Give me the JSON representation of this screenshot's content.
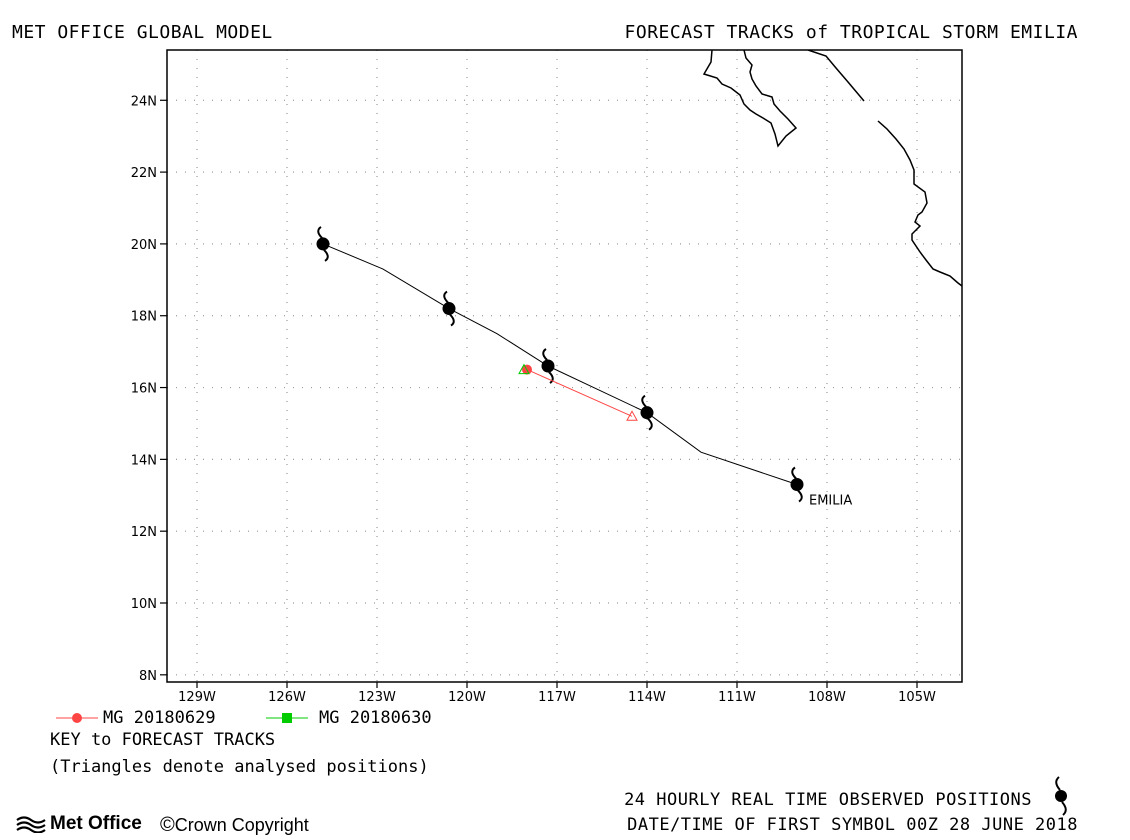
{
  "header": {
    "left_title": "MET OFFICE GLOBAL MODEL",
    "right_title": "FORECAST TRACKS of TROPICAL STORM EMILIA"
  },
  "map": {
    "lon_range": [
      -130,
      -103.5
    ],
    "lat_range": [
      7.8,
      25.4
    ],
    "lat_ticks": [
      {
        "value": 8,
        "label": "8N"
      },
      {
        "value": 10,
        "label": "10N"
      },
      {
        "value": 12,
        "label": "12N"
      },
      {
        "value": 14,
        "label": "14N"
      },
      {
        "value": 16,
        "label": "16N"
      },
      {
        "value": 18,
        "label": "18N"
      },
      {
        "value": 20,
        "label": "20N"
      },
      {
        "value": 22,
        "label": "22N"
      },
      {
        "value": 24,
        "label": "24N"
      }
    ],
    "lon_ticks": [
      {
        "value": -129,
        "label": "129W"
      },
      {
        "value": -126,
        "label": "126W"
      },
      {
        "value": -123,
        "label": "123W"
      },
      {
        "value": -120,
        "label": "120W"
      },
      {
        "value": -117,
        "label": "117W"
      },
      {
        "value": -114,
        "label": "114W"
      },
      {
        "value": -111,
        "label": "111W"
      },
      {
        "value": -108,
        "label": "108W"
      },
      {
        "value": -105,
        "label": "105W"
      }
    ],
    "grid": true,
    "observed_track": {
      "color": "#000000",
      "points": [
        {
          "lon": -109.0,
          "lat": 13.3
        },
        {
          "lon": -112.2,
          "lat": 14.2
        },
        {
          "lon": -114.0,
          "lat": 15.3
        },
        {
          "lon": -117.3,
          "lat": 16.6
        },
        {
          "lon": -119.0,
          "lat": 17.5
        },
        {
          "lon": -120.6,
          "lat": 18.2
        },
        {
          "lon": -122.8,
          "lat": 19.3
        },
        {
          "lon": -124.8,
          "lat": 20.0
        }
      ],
      "symbols": [
        {
          "lon": -109.0,
          "lat": 13.3
        },
        {
          "lon": -114.0,
          "lat": 15.3
        },
        {
          "lon": -117.3,
          "lat": 16.6
        },
        {
          "lon": -120.6,
          "lat": 18.2
        },
        {
          "lon": -124.8,
          "lat": 20.0
        }
      ],
      "storm_label": "EMILIA"
    },
    "forecast_tracks": [
      {
        "name": "MG 20180629",
        "color": "#ff4444",
        "marker": "circle",
        "analysed_position": {
          "lon": -114.5,
          "lat": 15.2
        },
        "points": [
          {
            "lon": -114.5,
            "lat": 15.2
          },
          {
            "lon": -118.0,
            "lat": 16.5
          }
        ]
      },
      {
        "name": "MG 20180630",
        "color": "#00cc00",
        "marker": "square",
        "analysed_position": {
          "lon": -118.1,
          "lat": 16.5
        },
        "points": [
          {
            "lon": -118.1,
            "lat": 16.5
          }
        ]
      }
    ]
  },
  "key": {
    "title": "KEY to FORECAST TRACKS",
    "note": "(Triangles denote analysed positions)"
  },
  "footer": {
    "observed_note": "24 HOURLY REAL TIME OBSERVED POSITIONS",
    "first_symbol": "DATE/TIME OF FIRST SYMBOL 00Z 28 JUNE 2018",
    "logo_text": "Met Office",
    "copyright": "Crown Copyright"
  }
}
